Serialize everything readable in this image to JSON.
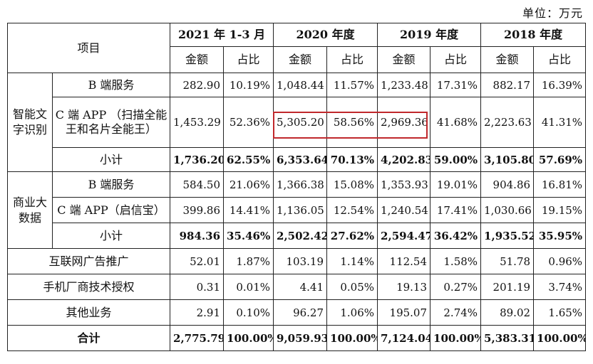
{
  "unit_label": "单位：万元",
  "header": {
    "item": "项目",
    "periods": [
      "2021 年 1-3 月",
      "2020 年度",
      "2019 年度",
      "2018 年度"
    ],
    "amount": "金额",
    "ratio": "占比"
  },
  "groups": {
    "ocr": "智能文字识别",
    "bigdata": "商业大数据"
  },
  "rows": {
    "ocr_b": {
      "label": "B 端服务",
      "v": [
        "282.90",
        "10.19%",
        "1,048.44",
        "11.57%",
        "1,233.48",
        "17.31%",
        "882.17",
        "16.39%"
      ]
    },
    "ocr_c": {
      "label": "C 端 APP （扫描全能王和名片全能王）",
      "v": [
        "1,453.29",
        "52.36%",
        "5,305.20",
        "58.56%",
        "2,969.36",
        "41.68%",
        "2,223.63",
        "41.31%"
      ]
    },
    "ocr_sub": {
      "label": "小计",
      "v": [
        "1,736.20",
        "62.55%",
        "6,353.64",
        "70.13%",
        "4,202.83",
        "59.00%",
        "3,105.80",
        "57.69%"
      ]
    },
    "bd_b": {
      "label": "B 端服务",
      "v": [
        "584.50",
        "21.06%",
        "1,366.38",
        "15.08%",
        "1,353.93",
        "19.01%",
        "904.86",
        "16.81%"
      ]
    },
    "bd_c": {
      "label": "C 端 APP（启信宝）",
      "v": [
        "399.86",
        "14.41%",
        "1,136.05",
        "12.54%",
        "1,240.54",
        "17.41%",
        "1,030.66",
        "19.15%"
      ]
    },
    "bd_sub": {
      "label": "小计",
      "v": [
        "984.36",
        "35.46%",
        "2,502.42",
        "27.62%",
        "2,594.47",
        "36.42%",
        "1,935.52",
        "35.95%"
      ]
    },
    "ad": {
      "label": "互联网广告推广",
      "v": [
        "52.01",
        "1.87%",
        "103.19",
        "1.14%",
        "112.54",
        "1.58%",
        "51.78",
        "0.96%"
      ]
    },
    "oem": {
      "label": "手机厂商技术授权",
      "v": [
        "0.31",
        "0.01%",
        "4.41",
        "0.05%",
        "19.13",
        "0.27%",
        "201.19",
        "3.74%"
      ]
    },
    "other": {
      "label": "其他业务",
      "v": [
        "2.91",
        "0.10%",
        "96.27",
        "1.06%",
        "195.07",
        "2.74%",
        "89.02",
        "1.65%"
      ]
    },
    "total": {
      "label": "合计",
      "v": [
        "2,775.79",
        "100.00%",
        "9,059.93",
        "100.00%",
        "7,124.04",
        "100.00%",
        "5,383.31",
        "100.00%"
      ]
    }
  },
  "highlight_color": "#c0282c"
}
